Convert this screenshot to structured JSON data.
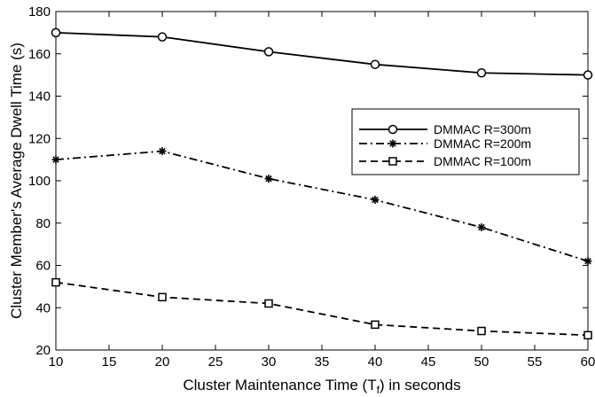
{
  "chart_data": {
    "type": "line",
    "title": "",
    "xlabel": "Cluster Maintenance Time (T",
    "xlabel_sub": "f",
    "xlabel_suffix": ") in seconds",
    "ylabel": "Cluster Member's Average Dwell Time (s)",
    "xlim": [
      10,
      60
    ],
    "ylim": [
      20,
      180
    ],
    "xticks": [
      10,
      15,
      20,
      25,
      30,
      35,
      40,
      45,
      50,
      55,
      60
    ],
    "yticks": [
      20,
      40,
      60,
      80,
      100,
      120,
      140,
      160,
      180
    ],
    "grid": false,
    "legend_position": "right",
    "x": [
      10,
      20,
      30,
      40,
      50,
      60
    ],
    "series": [
      {
        "name": "DMMAC R=300m",
        "values": [
          170,
          168,
          161,
          155,
          151,
          150
        ],
        "dash": "solid",
        "marker": "circle",
        "color": "#000000"
      },
      {
        "name": "DMMAC R=200m",
        "values": [
          110,
          114,
          101,
          91,
          78,
          62
        ],
        "dash": "dashdot",
        "marker": "star",
        "color": "#000000"
      },
      {
        "name": "DMMAC R=100m",
        "values": [
          52,
          45,
          42,
          32,
          29,
          27
        ],
        "dash": "dashed",
        "marker": "square",
        "color": "#000000"
      }
    ]
  }
}
